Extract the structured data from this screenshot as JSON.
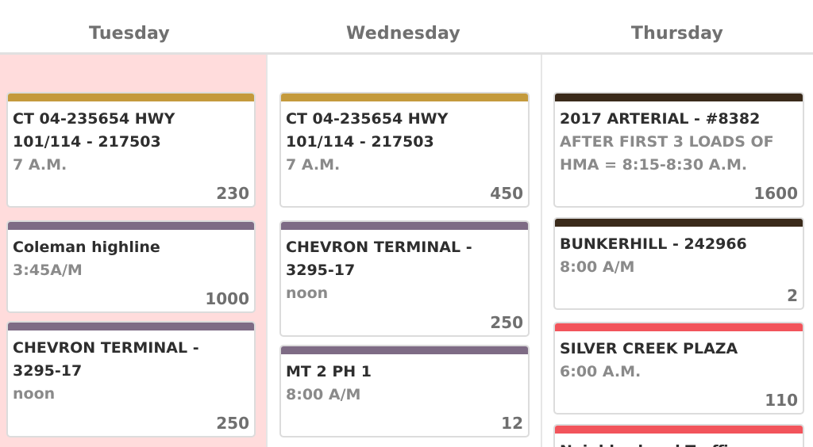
{
  "days": {
    "tuesday": "Tuesday",
    "wednesday": "Wednesday",
    "thursday": "Thursday"
  },
  "colors": {
    "gold": "#c49a3c",
    "purple": "#7e6b85",
    "dark_brown": "#3a2a1a",
    "red": "#f2545b",
    "today_background": "#ffdcdc"
  },
  "cards": {
    "tuesday": [
      {
        "title": "CT 04-235654 HWY 101/114 - 217503",
        "time": "7 A.M.",
        "quantity": "230",
        "color": "gold"
      },
      {
        "title": "Coleman highline",
        "time": "3:45A/M",
        "quantity": "1000",
        "color": "purple"
      },
      {
        "title": "CHEVRON TERMINAL - 3295-17",
        "time": "noon",
        "quantity": "250",
        "color": "purple"
      }
    ],
    "wednesday": [
      {
        "title": "CT 04-235654 HWY 101/114 - 217503",
        "time": "7 A.M.",
        "quantity": "450",
        "color": "gold"
      },
      {
        "title": "CHEVRON TERMINAL - 3295-17",
        "time": "noon",
        "quantity": "250",
        "color": "purple"
      },
      {
        "title": "MT 2 PH 1",
        "time": "8:00 A/M",
        "quantity": "12",
        "color": "purple"
      }
    ],
    "thursday": [
      {
        "title": "2017 ARTERIAL - #8382",
        "time": "AFTER FIRST 3 LOADS OF HMA = 8:15-8:30 A.M.",
        "quantity": "1600",
        "color": "dark_brown"
      },
      {
        "title": "BUNKERHILL - 242966",
        "time": "8:00 A/M",
        "quantity": "2",
        "color": "dark_brown"
      },
      {
        "title": "SILVER CREEK PLAZA",
        "time": "6:00 A.M.",
        "quantity": "110",
        "color": "red"
      },
      {
        "title": "Neighborhood Traffic",
        "time": "",
        "quantity": "",
        "color": "red"
      }
    ]
  }
}
